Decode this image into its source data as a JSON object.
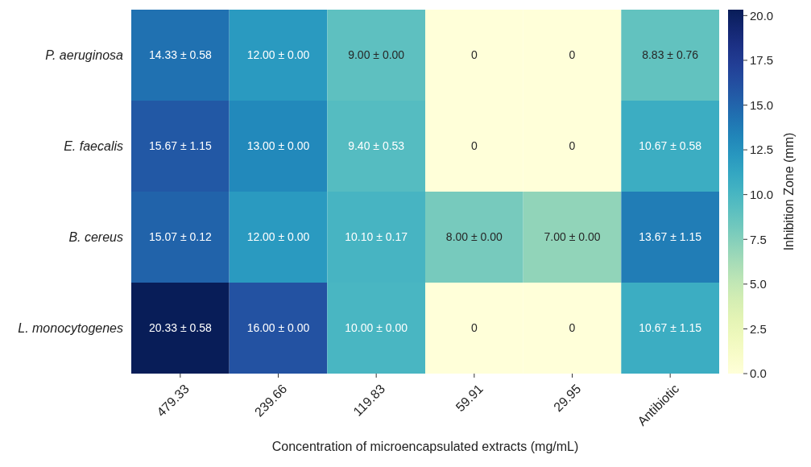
{
  "chart_data": {
    "type": "heatmap",
    "xlabel": "Concentration of microencapsulated extracts (mg/mL)",
    "clabel": "Inhibition Zone (mm)",
    "categories": [
      "479.33",
      "239.66",
      "119.83",
      "59.91",
      "29.95",
      "Antibiotic"
    ],
    "y_categories": [
      "P. aeruginosa",
      "E. faecalis",
      "B. cereus",
      "L. monocytogenes"
    ],
    "cells": [
      [
        14.33,
        12.0,
        9.0,
        0,
        0,
        8.83
      ],
      [
        15.67,
        13.0,
        9.4,
        0,
        0,
        10.67
      ],
      [
        15.07,
        12.0,
        10.1,
        8.0,
        7.0,
        13.67
      ],
      [
        20.33,
        16.0,
        10.0,
        0,
        0,
        10.67
      ]
    ],
    "cell_labels": [
      [
        "14.33 ± 0.58",
        "12.00 ± 0.00",
        "9.00 ± 0.00",
        "0",
        "0",
        "8.83 ± 0.76"
      ],
      [
        "15.67 ± 1.15",
        "13.00 ± 0.00",
        "9.40 ± 0.53",
        "0",
        "0",
        "10.67 ± 0.58"
      ],
      [
        "15.07 ± 0.12",
        "12.00 ± 0.00",
        "10.10 ± 0.17",
        "8.00 ± 0.00",
        "7.00 ± 0.00",
        "13.67 ± 1.15"
      ],
      [
        "20.33 ± 0.58",
        "16.00 ± 0.00",
        "10.00 ± 0.00",
        "0",
        "0",
        "10.67 ± 1.15"
      ]
    ],
    "clim": [
      0,
      20.33
    ],
    "cticks": [
      {
        "value": 0,
        "label": "0.0"
      },
      {
        "value": 2.5,
        "label": "2.5"
      },
      {
        "value": 5,
        "label": "5.0"
      },
      {
        "value": 7.5,
        "label": "7.5"
      },
      {
        "value": 10,
        "label": "10.0"
      },
      {
        "value": 12.5,
        "label": "12.5"
      },
      {
        "value": 15,
        "label": "15.0"
      },
      {
        "value": 17.5,
        "label": "17.5"
      },
      {
        "value": 20,
        "label": "20.0"
      }
    ]
  }
}
